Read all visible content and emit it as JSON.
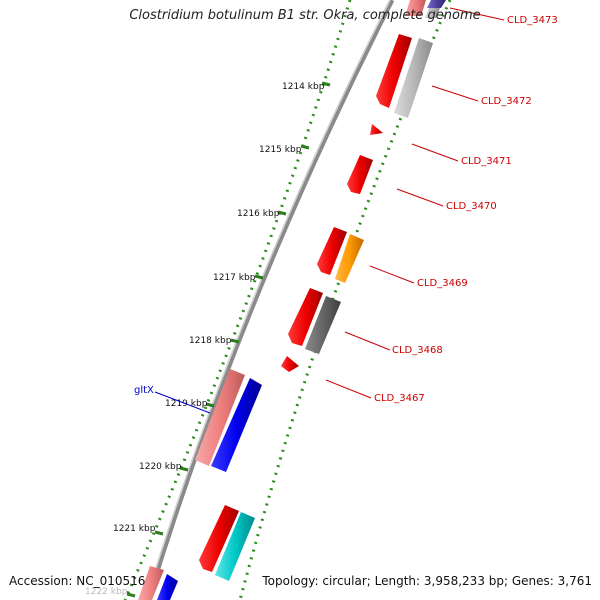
{
  "title": "Clostridium botulinum B1 str. Okra, complete genome",
  "footer": {
    "accession": "Accession: NC_010516",
    "topology": "Topology: circular; Length: 3,958,233 bp; Genes: 3,761"
  },
  "colors": {
    "backbone": "#808080",
    "tick_major": "#2e7d1e",
    "tick_minor": "#2e8b1e",
    "label_red": "#cc0000",
    "label_blue": "#0000cc"
  },
  "scale_labels": [
    {
      "text": "1214 kbp"
    },
    {
      "text": "1215 kbp"
    },
    {
      "text": "1216 kbp"
    },
    {
      "text": "1217 kbp"
    },
    {
      "text": "1218 kbp"
    },
    {
      "text": "1219 kbp"
    },
    {
      "text": "1220 kbp"
    },
    {
      "text": "1221 kbp"
    },
    {
      "text": "1222 kbp"
    }
  ],
  "gene_labels": [
    {
      "text": "CLD_3473",
      "color": "#cc0000"
    },
    {
      "text": "CLD_3472",
      "color": "#cc0000"
    },
    {
      "text": "CLD_3471",
      "color": "#cc0000"
    },
    {
      "text": "CLD_3470",
      "color": "#cc0000"
    },
    {
      "text": "CLD_3469",
      "color": "#cc0000"
    },
    {
      "text": "CLD_3468",
      "color": "#cc0000"
    },
    {
      "text": "CLD_3467",
      "color": "#cc0000"
    },
    {
      "text": "gltX",
      "color": "#0000cc"
    }
  ],
  "features": [
    {
      "name": "feature-red",
      "color": "#ee0000"
    },
    {
      "name": "feature-pink",
      "color": "#f08080"
    },
    {
      "name": "feature-blue",
      "color": "#0000ee"
    },
    {
      "name": "feature-gray",
      "color": "#b8b8b8"
    },
    {
      "name": "feature-darkgray",
      "color": "#666666"
    },
    {
      "name": "feature-orange",
      "color": "#ff9900"
    },
    {
      "name": "feature-cyan",
      "color": "#00c8c8"
    },
    {
      "name": "feature-purple",
      "color": "#5040a0"
    }
  ]
}
